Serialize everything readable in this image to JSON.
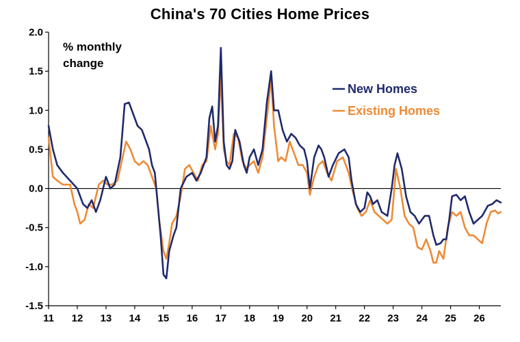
{
  "chart_data": {
    "type": "line",
    "title": "China's 70 Cities Home Prices",
    "annotation": [
      "% monthly",
      "change"
    ],
    "ylim": [
      -1.5,
      2.0
    ],
    "y_ticks": [
      -1.5,
      -1.0,
      -0.5,
      0.0,
      0.5,
      1.0,
      1.5,
      2.0
    ],
    "y_tick_labels": [
      "-1.5",
      "-1.0",
      "-0.5",
      "0.0",
      "0.5",
      "1.0",
      "1.5",
      "2.0"
    ],
    "xlim": [
      2011.0,
      2026.75
    ],
    "x_ticks": [
      2011,
      2012,
      2013,
      2014,
      2015,
      2016,
      2017,
      2018,
      2019,
      2020,
      2021,
      2022,
      2023,
      2024,
      2025,
      2026
    ],
    "x_tick_labels": [
      "11",
      "12",
      "13",
      "14",
      "15",
      "16",
      "17",
      "18",
      "19",
      "20",
      "21",
      "22",
      "23",
      "24",
      "25",
      "26"
    ],
    "grid": false,
    "legend_position": "top-right",
    "colors": {
      "new": "#1f2a6b",
      "existing": "#ee8a35"
    },
    "series": [
      {
        "name": "New Homes",
        "key": "new",
        "points": [
          [
            2011.0,
            0.8
          ],
          [
            2011.15,
            0.5
          ],
          [
            2011.3,
            0.3
          ],
          [
            2011.5,
            0.2
          ],
          [
            2011.75,
            0.1
          ],
          [
            2012.0,
            0.0
          ],
          [
            2012.2,
            -0.2
          ],
          [
            2012.35,
            -0.25
          ],
          [
            2012.5,
            -0.15
          ],
          [
            2012.65,
            -0.3
          ],
          [
            2012.8,
            -0.15
          ],
          [
            2013.0,
            0.15
          ],
          [
            2013.15,
            0.0
          ],
          [
            2013.3,
            0.05
          ],
          [
            2013.5,
            0.4
          ],
          [
            2013.65,
            1.08
          ],
          [
            2013.8,
            1.1
          ],
          [
            2013.95,
            0.95
          ],
          [
            2014.1,
            0.8
          ],
          [
            2014.25,
            0.75
          ],
          [
            2014.4,
            0.6
          ],
          [
            2014.5,
            0.5
          ],
          [
            2014.6,
            0.3
          ],
          [
            2014.7,
            0.2
          ],
          [
            2014.8,
            -0.2
          ],
          [
            2014.9,
            -0.6
          ],
          [
            2015.0,
            -1.1
          ],
          [
            2015.1,
            -1.15
          ],
          [
            2015.2,
            -0.8
          ],
          [
            2015.35,
            -0.6
          ],
          [
            2015.45,
            -0.5
          ],
          [
            2015.6,
            0.0
          ],
          [
            2015.8,
            0.15
          ],
          [
            2016.0,
            0.2
          ],
          [
            2016.15,
            0.1
          ],
          [
            2016.3,
            0.2
          ],
          [
            2016.5,
            0.4
          ],
          [
            2016.6,
            0.9
          ],
          [
            2016.7,
            1.05
          ],
          [
            2016.8,
            0.6
          ],
          [
            2016.9,
            0.8
          ],
          [
            2017.0,
            1.8
          ],
          [
            2017.1,
            0.6
          ],
          [
            2017.2,
            0.3
          ],
          [
            2017.3,
            0.25
          ],
          [
            2017.4,
            0.35
          ],
          [
            2017.5,
            0.75
          ],
          [
            2017.65,
            0.6
          ],
          [
            2017.8,
            0.3
          ],
          [
            2017.9,
            0.2
          ],
          [
            2018.0,
            0.4
          ],
          [
            2018.15,
            0.5
          ],
          [
            2018.3,
            0.3
          ],
          [
            2018.45,
            0.5
          ],
          [
            2018.6,
            1.1
          ],
          [
            2018.75,
            1.5
          ],
          [
            2018.85,
            1.0
          ],
          [
            2019.0,
            1.0
          ],
          [
            2019.15,
            0.75
          ],
          [
            2019.3,
            0.6
          ],
          [
            2019.45,
            0.7
          ],
          [
            2019.6,
            0.65
          ],
          [
            2019.75,
            0.55
          ],
          [
            2019.9,
            0.5
          ],
          [
            2020.0,
            0.35
          ],
          [
            2020.1,
            0.0
          ],
          [
            2020.25,
            0.4
          ],
          [
            2020.4,
            0.55
          ],
          [
            2020.5,
            0.5
          ],
          [
            2020.6,
            0.4
          ],
          [
            2020.75,
            0.15
          ],
          [
            2020.9,
            0.3
          ],
          [
            2021.1,
            0.45
          ],
          [
            2021.3,
            0.5
          ],
          [
            2021.45,
            0.4
          ],
          [
            2021.55,
            0.1
          ],
          [
            2021.7,
            -0.2
          ],
          [
            2021.85,
            -0.3
          ],
          [
            2022.0,
            -0.25
          ],
          [
            2022.1,
            -0.05
          ],
          [
            2022.2,
            -0.1
          ],
          [
            2022.3,
            -0.2
          ],
          [
            2022.45,
            -0.15
          ],
          [
            2022.6,
            -0.3
          ],
          [
            2022.8,
            -0.35
          ],
          [
            2022.95,
            0.0
          ],
          [
            2023.05,
            0.3
          ],
          [
            2023.15,
            0.45
          ],
          [
            2023.3,
            0.25
          ],
          [
            2023.45,
            -0.1
          ],
          [
            2023.6,
            -0.3
          ],
          [
            2023.75,
            -0.35
          ],
          [
            2023.9,
            -0.45
          ],
          [
            2024.0,
            -0.4
          ],
          [
            2024.1,
            -0.35
          ],
          [
            2024.25,
            -0.35
          ],
          [
            2024.4,
            -0.6
          ],
          [
            2024.5,
            -0.72
          ],
          [
            2024.65,
            -0.7
          ],
          [
            2024.75,
            -0.65
          ],
          [
            2024.85,
            -0.65
          ],
          [
            2024.95,
            -0.4
          ],
          [
            2025.05,
            -0.1
          ],
          [
            2025.2,
            -0.08
          ],
          [
            2025.35,
            -0.15
          ],
          [
            2025.5,
            -0.1
          ],
          [
            2025.65,
            -0.3
          ],
          [
            2025.8,
            -0.45
          ],
          [
            2025.95,
            -0.4
          ],
          [
            2026.1,
            -0.35
          ],
          [
            2026.3,
            -0.22
          ],
          [
            2026.45,
            -0.2
          ],
          [
            2026.6,
            -0.15
          ],
          [
            2026.75,
            -0.18
          ]
        ]
      },
      {
        "name": "Existing Homes",
        "key": "existing",
        "points": [
          [
            2011.0,
            0.65
          ],
          [
            2011.15,
            0.15
          ],
          [
            2011.3,
            0.1
          ],
          [
            2011.5,
            0.05
          ],
          [
            2011.75,
            0.05
          ],
          [
            2011.9,
            -0.2
          ],
          [
            2012.0,
            -0.3
          ],
          [
            2012.1,
            -0.45
          ],
          [
            2012.25,
            -0.4
          ],
          [
            2012.4,
            -0.2
          ],
          [
            2012.55,
            -0.25
          ],
          [
            2012.75,
            0.05
          ],
          [
            2012.9,
            0.1
          ],
          [
            2013.05,
            0.05
          ],
          [
            2013.2,
            0.05
          ],
          [
            2013.4,
            0.1
          ],
          [
            2013.55,
            0.35
          ],
          [
            2013.7,
            0.6
          ],
          [
            2013.85,
            0.5
          ],
          [
            2014.0,
            0.35
          ],
          [
            2014.15,
            0.3
          ],
          [
            2014.3,
            0.35
          ],
          [
            2014.45,
            0.3
          ],
          [
            2014.6,
            0.15
          ],
          [
            2014.75,
            0.0
          ],
          [
            2014.85,
            -0.4
          ],
          [
            2015.0,
            -0.8
          ],
          [
            2015.1,
            -0.9
          ],
          [
            2015.2,
            -0.7
          ],
          [
            2015.3,
            -0.45
          ],
          [
            2015.45,
            -0.35
          ],
          [
            2015.6,
            -0.1
          ],
          [
            2015.75,
            0.25
          ],
          [
            2015.9,
            0.3
          ],
          [
            2016.05,
            0.2
          ],
          [
            2016.2,
            0.1
          ],
          [
            2016.35,
            0.3
          ],
          [
            2016.5,
            0.35
          ],
          [
            2016.65,
            0.8
          ],
          [
            2016.8,
            0.5
          ],
          [
            2016.9,
            0.7
          ],
          [
            2017.0,
            1.45
          ],
          [
            2017.1,
            0.5
          ],
          [
            2017.2,
            0.35
          ],
          [
            2017.3,
            0.3
          ],
          [
            2017.45,
            0.7
          ],
          [
            2017.6,
            0.65
          ],
          [
            2017.75,
            0.35
          ],
          [
            2017.9,
            0.25
          ],
          [
            2018.0,
            0.3
          ],
          [
            2018.15,
            0.35
          ],
          [
            2018.3,
            0.2
          ],
          [
            2018.45,
            0.4
          ],
          [
            2018.6,
            0.9
          ],
          [
            2018.75,
            1.4
          ],
          [
            2018.85,
            0.8
          ],
          [
            2019.0,
            0.35
          ],
          [
            2019.1,
            0.4
          ],
          [
            2019.25,
            0.35
          ],
          [
            2019.4,
            0.6
          ],
          [
            2019.55,
            0.45
          ],
          [
            2019.7,
            0.3
          ],
          [
            2019.85,
            0.3
          ],
          [
            2020.0,
            0.2
          ],
          [
            2020.1,
            -0.08
          ],
          [
            2020.25,
            0.15
          ],
          [
            2020.4,
            0.3
          ],
          [
            2020.55,
            0.35
          ],
          [
            2020.7,
            0.2
          ],
          [
            2020.85,
            0.1
          ],
          [
            2021.05,
            0.35
          ],
          [
            2021.25,
            0.4
          ],
          [
            2021.45,
            0.2
          ],
          [
            2021.6,
            -0.05
          ],
          [
            2021.75,
            -0.25
          ],
          [
            2021.9,
            -0.35
          ],
          [
            2022.05,
            -0.3
          ],
          [
            2022.2,
            -0.15
          ],
          [
            2022.35,
            -0.3
          ],
          [
            2022.5,
            -0.35
          ],
          [
            2022.65,
            -0.4
          ],
          [
            2022.8,
            -0.45
          ],
          [
            2022.95,
            -0.4
          ],
          [
            2023.1,
            0.25
          ],
          [
            2023.25,
            0.0
          ],
          [
            2023.4,
            -0.35
          ],
          [
            2023.55,
            -0.45
          ],
          [
            2023.7,
            -0.5
          ],
          [
            2023.85,
            -0.75
          ],
          [
            2024.0,
            -0.78
          ],
          [
            2024.15,
            -0.65
          ],
          [
            2024.3,
            -0.8
          ],
          [
            2024.4,
            -0.95
          ],
          [
            2024.5,
            -0.95
          ],
          [
            2024.6,
            -0.8
          ],
          [
            2024.75,
            -0.9
          ],
          [
            2024.9,
            -0.5
          ],
          [
            2025.05,
            -0.3
          ],
          [
            2025.2,
            -0.35
          ],
          [
            2025.35,
            -0.3
          ],
          [
            2025.5,
            -0.5
          ],
          [
            2025.65,
            -0.6
          ],
          [
            2025.8,
            -0.6
          ],
          [
            2025.95,
            -0.65
          ],
          [
            2026.1,
            -0.7
          ],
          [
            2026.25,
            -0.45
          ],
          [
            2026.4,
            -0.3
          ],
          [
            2026.55,
            -0.28
          ],
          [
            2026.65,
            -0.32
          ],
          [
            2026.75,
            -0.3
          ]
        ]
      }
    ]
  }
}
